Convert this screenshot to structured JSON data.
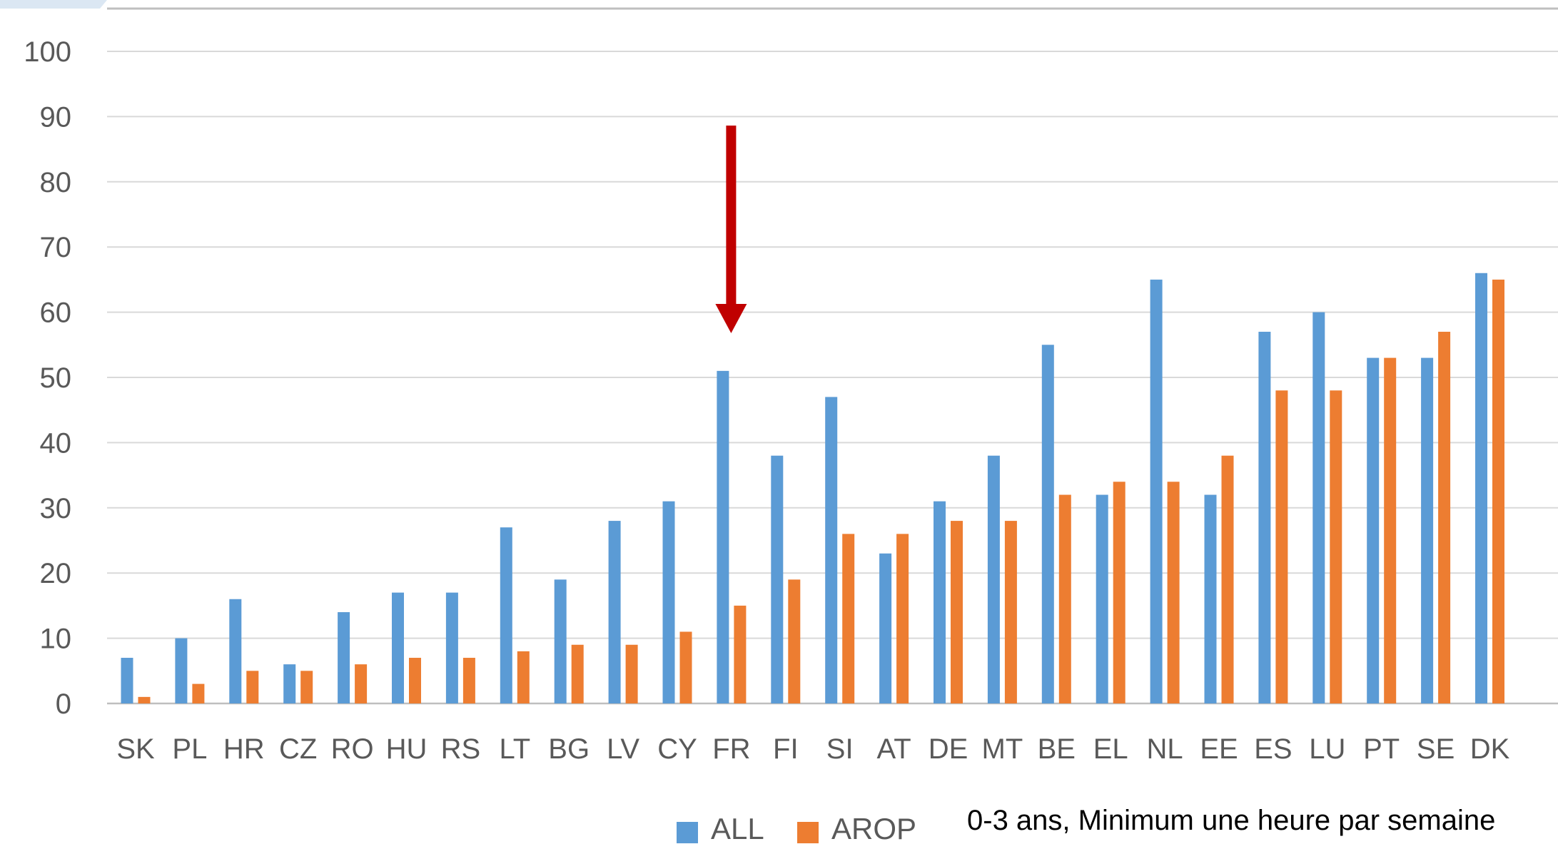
{
  "chart_data": {
    "type": "bar",
    "categories": [
      "SK",
      "PL",
      "HR",
      "CZ",
      "RO",
      "HU",
      "RS",
      "LT",
      "BG",
      "LV",
      "CY",
      "FR",
      "FI",
      "SI",
      "AT",
      "DE",
      "MT",
      "BE",
      "EL",
      "NL",
      "EE",
      "ES",
      "LU",
      "PT",
      "SE",
      "DK"
    ],
    "series": [
      {
        "name": "ALL",
        "color": "#5b9bd5",
        "values": [
          7,
          10,
          16,
          6,
          14,
          17,
          17,
          27,
          19,
          28,
          31,
          51,
          38,
          47,
          23,
          31,
          38,
          55,
          32,
          65,
          32,
          57,
          60,
          53,
          53,
          66
        ]
      },
      {
        "name": "AROP",
        "color": "#ed7d31",
        "values": [
          1,
          3,
          5,
          5,
          6,
          7,
          7,
          8,
          9,
          9,
          11,
          15,
          19,
          26,
          26,
          28,
          28,
          32,
          34,
          34,
          38,
          48,
          48,
          53,
          57,
          65
        ]
      }
    ],
    "yticks": [
      "0",
      "10",
      "20",
      "30",
      "40",
      "50",
      "60",
      "70",
      "80",
      "90",
      "100"
    ],
    "ylim": [
      0,
      100
    ],
    "grid": true,
    "legend_position": "bottom",
    "annotation": {
      "type": "arrow",
      "color": "#c00000",
      "target_category": "FR"
    },
    "note": "0-3 ans, Minimum une heure par semaine"
  }
}
